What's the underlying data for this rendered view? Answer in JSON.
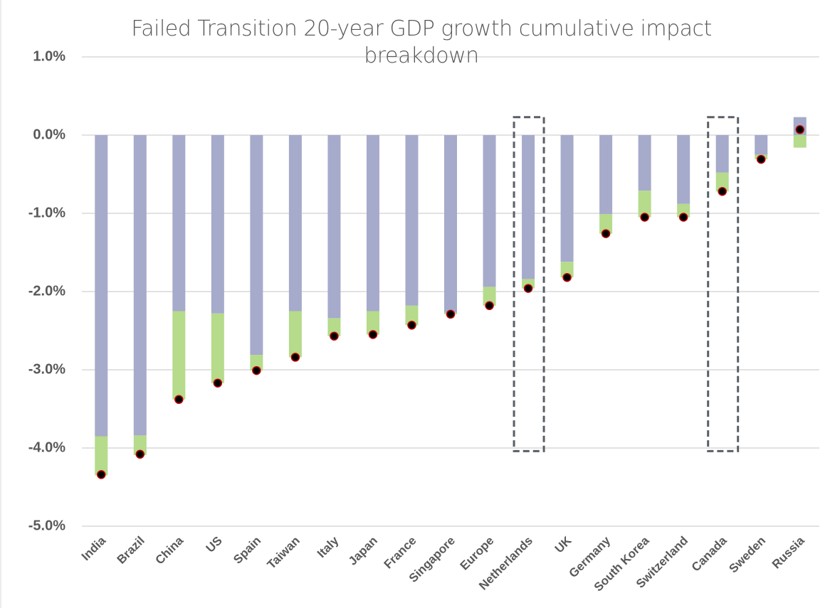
{
  "chart_data": {
    "type": "bar",
    "stacked": true,
    "title": "Failed Transition 20-year GDP growth cumulative impact breakdown",
    "categories": [
      "India",
      "Brazil",
      "China",
      "US",
      "Spain",
      "Taiwan",
      "Italy",
      "Japan",
      "France",
      "Singapore",
      "Europe",
      "Netherlands",
      "UK",
      "Germany",
      "South Korea",
      "Switzerland",
      "Canada",
      "Sweden",
      "Russia"
    ],
    "series": [
      {
        "color": "#a6aacb",
        "values": [
          -3.85,
          -3.84,
          -2.25,
          -2.28,
          -2.81,
          -2.25,
          -2.34,
          -2.25,
          -2.18,
          -2.27,
          -1.94,
          -1.84,
          -1.62,
          -1.01,
          -0.71,
          -0.88,
          -0.48,
          -0.25,
          0.23
        ]
      },
      {
        "color": "#b5db8b",
        "values": [
          -0.5,
          -0.25,
          -1.13,
          -0.89,
          -0.2,
          -0.59,
          -0.23,
          -0.3,
          -0.25,
          -0.02,
          -0.24,
          -0.12,
          -0.2,
          -0.25,
          -0.34,
          -0.17,
          -0.24,
          -0.06,
          -0.16
        ]
      },
      {
        "type": "dot",
        "color": "#000000",
        "values": [
          -4.34,
          -4.08,
          -3.38,
          -3.17,
          -3.01,
          -2.84,
          -2.57,
          -2.55,
          -2.43,
          -2.29,
          -2.18,
          -1.96,
          -1.82,
          -1.26,
          -1.05,
          -1.05,
          -0.72,
          -0.31,
          0.07
        ]
      }
    ],
    "ylim": [
      -5,
      1
    ],
    "yticks": [
      {
        "value": -5,
        "label": "-5.0%"
      },
      {
        "value": -4,
        "label": "-4.0%"
      },
      {
        "value": -3,
        "label": "-3.0%"
      },
      {
        "value": -2,
        "label": "-2.0%"
      },
      {
        "value": -1,
        "label": "-1.0%"
      },
      {
        "value": 0,
        "label": "0.0%"
      },
      {
        "value": 1,
        "label": "1.0%"
      }
    ],
    "grid": true
  }
}
